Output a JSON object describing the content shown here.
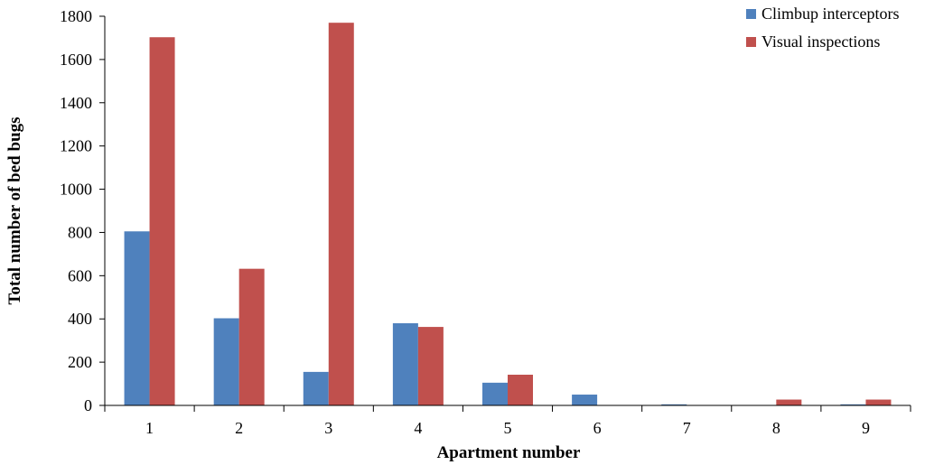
{
  "chart_data": {
    "type": "bar",
    "title": "",
    "xlabel": "Apartment number",
    "ylabel": "Total number  of bed bugs",
    "categories": [
      "1",
      "2",
      "3",
      "4",
      "5",
      "6",
      "7",
      "8",
      "9"
    ],
    "ylim": [
      0,
      1800
    ],
    "yticks": [
      "0",
      "200",
      "400",
      "600",
      "800",
      "1000",
      "1200",
      "1400",
      "1600",
      "1800"
    ],
    "grid": false,
    "legend_position": "top-right",
    "series": [
      {
        "name": "Climbup interceptors",
        "color": "#4f81bd",
        "values": [
          805,
          403,
          155,
          380,
          105,
          50,
          5,
          0,
          5
        ]
      },
      {
        "name": "Visual inspections",
        "color": "#c0504d",
        "values": [
          1703,
          632,
          1770,
          363,
          142,
          0,
          0,
          27,
          27
        ]
      }
    ]
  }
}
